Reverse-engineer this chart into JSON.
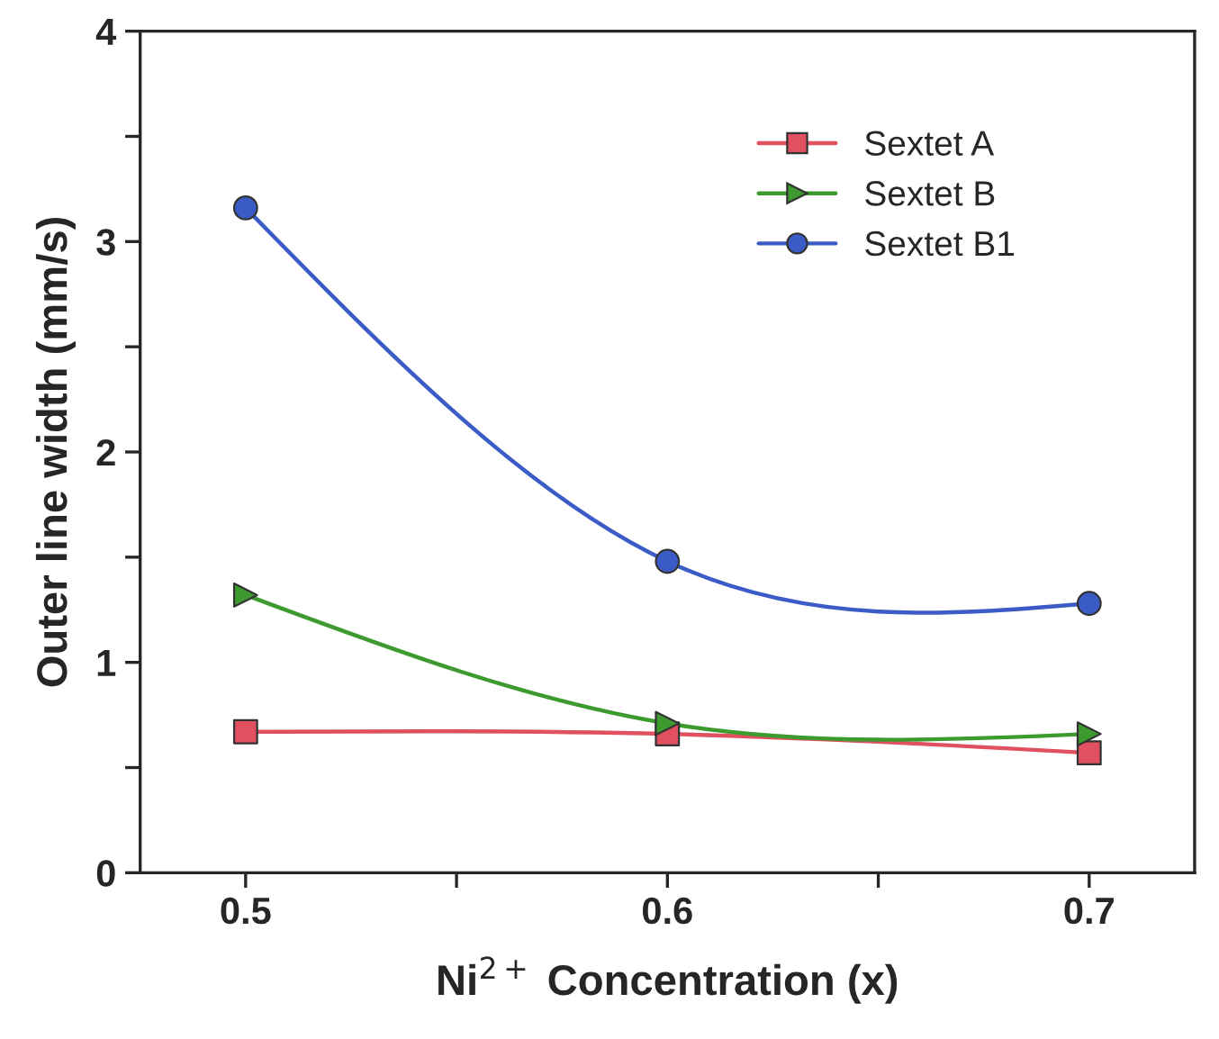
{
  "chart_data": {
    "type": "line",
    "xlabel": "Ni$^{2+}$ Concentration (x)",
    "ylabel": "Outer line width (mm/s)",
    "x": [
      0.5,
      0.6,
      0.7
    ],
    "series": [
      {
        "name": "Sextet A",
        "color": "#e0505f",
        "marker": "square",
        "values": [
          0.67,
          0.66,
          0.57
        ]
      },
      {
        "name": "Sextet B",
        "color": "#3c9a2e",
        "marker": "triangle",
        "values": [
          1.32,
          0.71,
          0.66
        ]
      },
      {
        "name": "Sextet B1",
        "color": "#3b5cc6",
        "marker": "circle",
        "values": [
          3.16,
          1.48,
          1.28
        ]
      }
    ],
    "xlim": [
      0.475,
      0.725
    ],
    "xticks": [
      0.5,
      {
        "value": 0.55,
        "label": null
      },
      0.6,
      {
        "value": 0.65,
        "label": null
      },
      0.7
    ],
    "ylim": [
      0,
      4
    ],
    "yticks": [
      0,
      {
        "value": 0.5,
        "label": null
      },
      1,
      {
        "value": 1.5,
        "label": null
      },
      2,
      {
        "value": 2.5,
        "label": null
      },
      3,
      {
        "value": 3.5,
        "label": null
      },
      4
    ],
    "grid": false,
    "legend": "top right",
    "line_style": "solid"
  }
}
